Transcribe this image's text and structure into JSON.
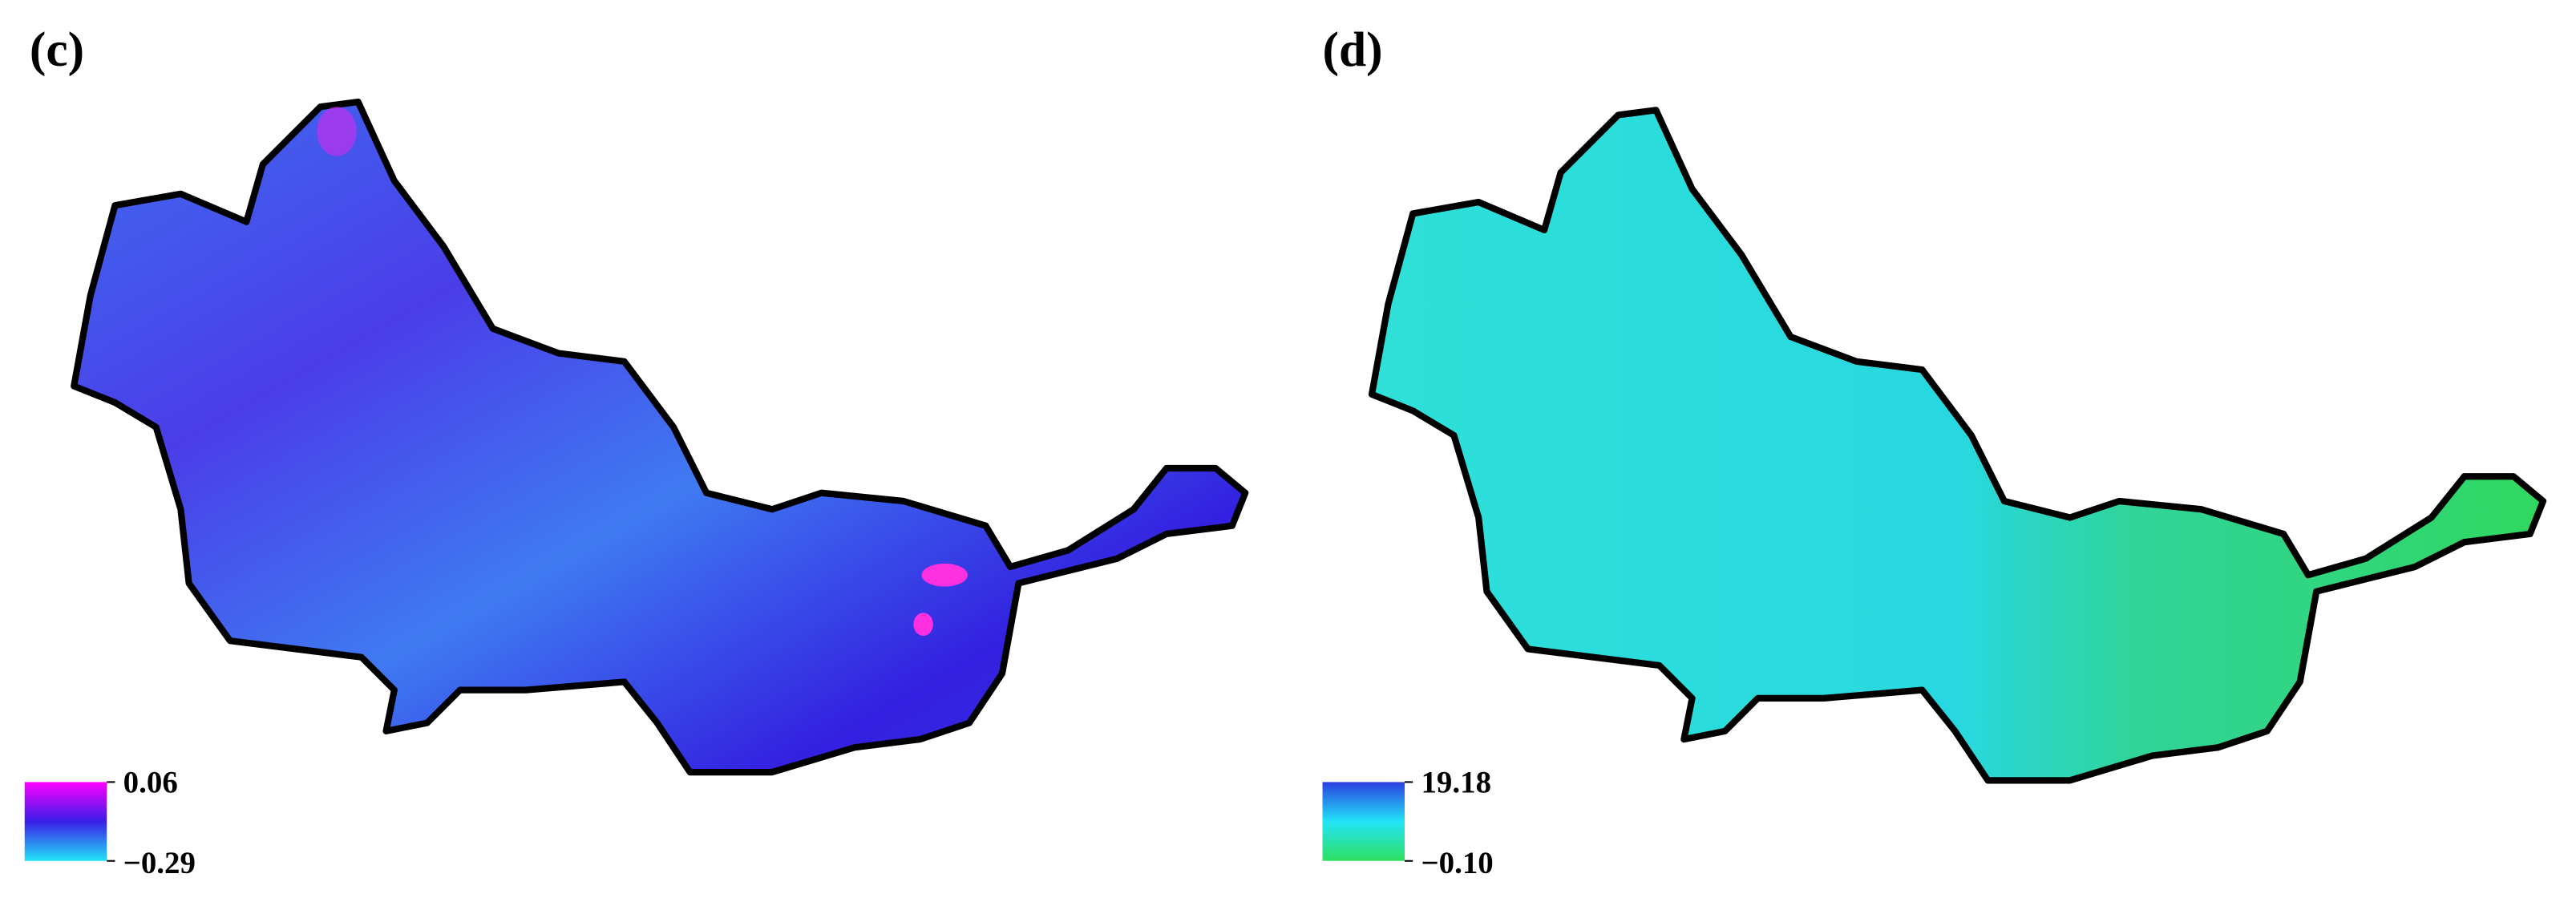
{
  "panels": [
    {
      "label": "(c)",
      "legend": {
        "colors": [
          "#ff00ff",
          "#3a1ee8",
          "#22e4f8"
        ],
        "ticks": [
          0.06,
          {
            "value": -0.29,
            "label": "−0.29"
          }
        ]
      }
    },
    {
      "label": "(d)",
      "legend": {
        "colors": [
          "#2a3ee0",
          "#22e4f8",
          "#2ee060"
        ],
        "ticks": [
          19.18,
          {
            "value": -0.1,
            "label": "−0.10"
          }
        ]
      }
    }
  ]
}
